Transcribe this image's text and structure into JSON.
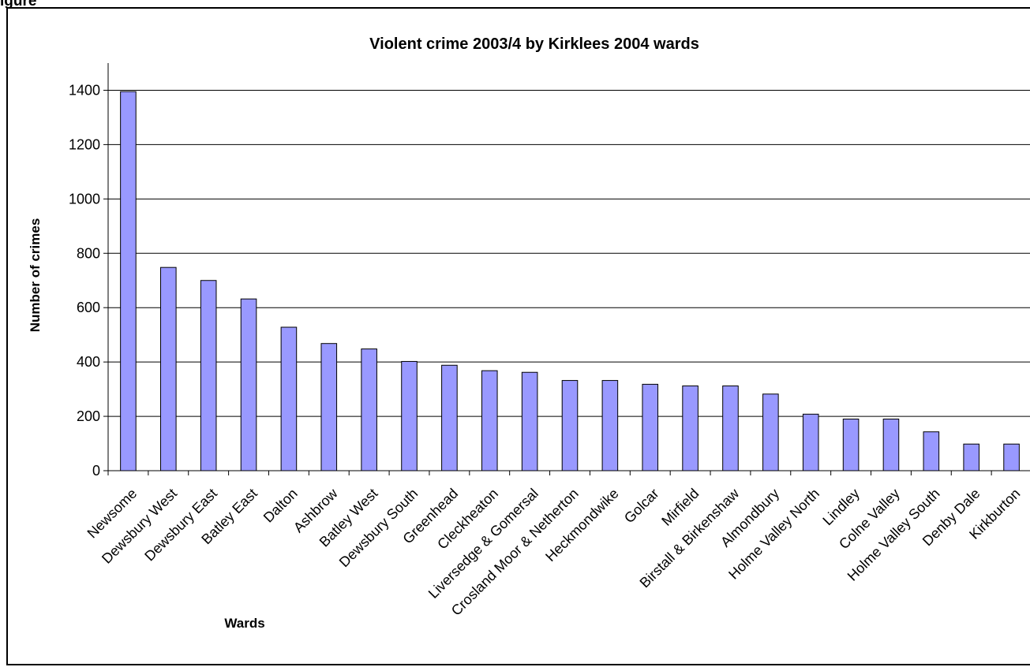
{
  "figure_caption": "igure",
  "chart_data": {
    "type": "bar",
    "title": "Violent crime 2003/4 by Kirklees 2004 wards",
    "xlabel": "Wards",
    "ylabel": "Number of crimes",
    "ylim": [
      0,
      1500
    ],
    "yticks": [
      0,
      200,
      400,
      600,
      800,
      1000,
      1200,
      1400
    ],
    "grid": true,
    "legend": "none",
    "bar_color": "#9999ff",
    "categories": [
      "Newsome",
      "Dewsbury West",
      "Dewsbury East",
      "Batley East",
      "Dalton",
      "Ashbrow",
      "Batley West",
      "Dewsbury South",
      "Greenhead",
      "Cleckheaton",
      "Liversedge & Gomersal",
      "Crosland Moor & Netherton",
      "Heckmondwike",
      "Golcar",
      "Mirfield",
      "Birstall & Birkenshaw",
      "Almondbury",
      "Holme Valley North",
      "Lindley",
      "Colne Valley",
      "Holme Valley South",
      "Denby Dale",
      "Kirkburton"
    ],
    "values": [
      1395,
      748,
      700,
      632,
      528,
      468,
      448,
      402,
      388,
      368,
      362,
      332,
      332,
      318,
      312,
      312,
      282,
      208,
      190,
      190,
      143,
      98,
      98
    ]
  }
}
